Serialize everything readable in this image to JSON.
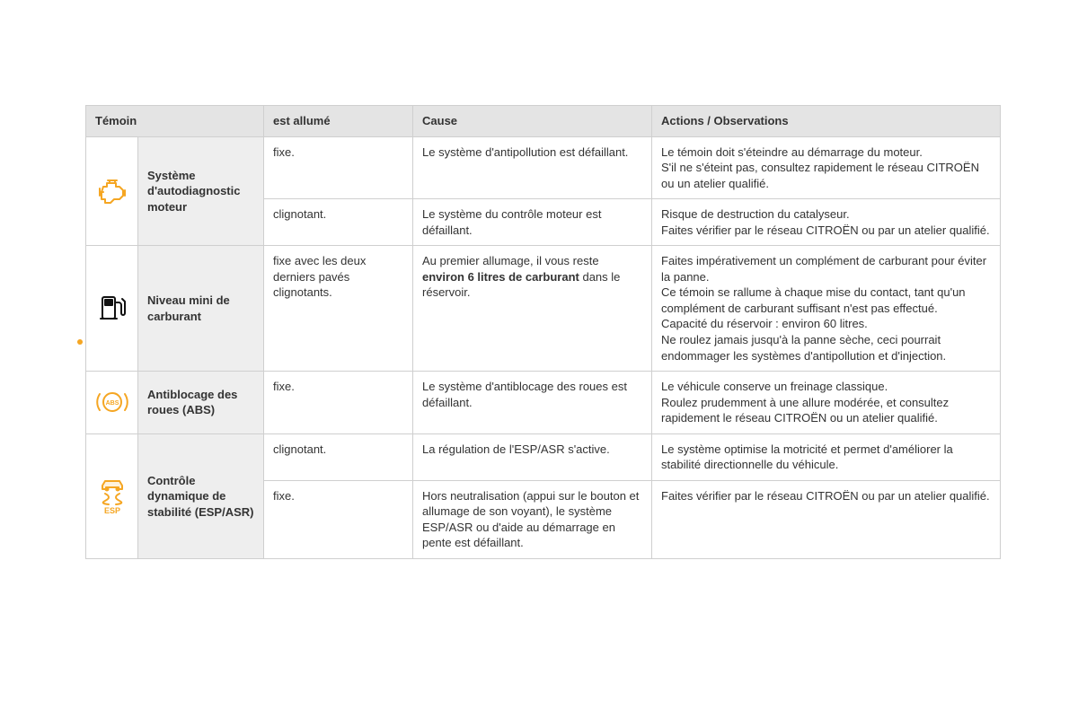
{
  "colors": {
    "orange": "#f5a623",
    "black": "#111111",
    "header_bg": "#e4e4e4",
    "name_bg": "#eeeeee",
    "border": "#cfcfcf",
    "text": "#333333"
  },
  "headers": {
    "temoin": "Témoin",
    "est_allume": "est allumé",
    "cause": "Cause",
    "actions": "Actions / Observations"
  },
  "rows": {
    "autodiag": {
      "name": "Système d'autodiagnostic moteur",
      "r1": {
        "state": "fixe.",
        "cause": "Le système d'antipollution est défaillant.",
        "action": "Le témoin doit s'éteindre au démarrage du moteur.\nS'il ne s'éteint pas, consultez rapidement le réseau CITROËN ou un atelier qualifié."
      },
      "r2": {
        "state": "clignotant.",
        "cause": "Le système du contrôle moteur est défaillant.",
        "action": "Risque de destruction du catalyseur.\nFaites vérifier par le réseau CITROËN ou par un atelier qualifié."
      }
    },
    "fuel": {
      "name": "Niveau mini de carburant",
      "state": "fixe avec les deux derniers pavés clignotants.",
      "cause_pre": "Au premier allumage, il vous reste ",
      "cause_bold": "environ 6 litres de carburant",
      "cause_post": " dans le réservoir.",
      "action": "Faites impérativement un complément de carburant pour éviter la panne.\nCe témoin se rallume à chaque mise du contact, tant qu'un complément de carburant suffisant n'est pas effectué.\nCapacité du réservoir : environ 60 litres.\nNe roulez jamais jusqu'à la panne sèche, ceci pourrait endommager les systèmes d'antipollution et d'injection."
    },
    "abs": {
      "name": "Antiblocage des roues (ABS)",
      "state": "fixe.",
      "cause": "Le système d'antiblocage des roues est défaillant.",
      "action": "Le véhicule conserve un freinage classique.\nRoulez prudemment à une allure modérée, et consultez rapidement le réseau CITROËN ou un atelier qualifié."
    },
    "esp": {
      "name": "Contrôle dynamique de stabilité (ESP/ASR)",
      "r1": {
        "state": "clignotant.",
        "cause": "La régulation de l'ESP/ASR s'active.",
        "action": "Le système optimise la motricité et permet d'améliorer la stabilité directionnelle du véhicule."
      },
      "r2": {
        "state": "fixe.",
        "cause": "Hors neutralisation (appui sur le bouton et allumage de son voyant), le système ESP/ASR ou d'aide au démarrage en pente est défaillant.",
        "action": "Faites vérifier par le réseau CITROËN ou par un atelier qualifié."
      }
    }
  }
}
